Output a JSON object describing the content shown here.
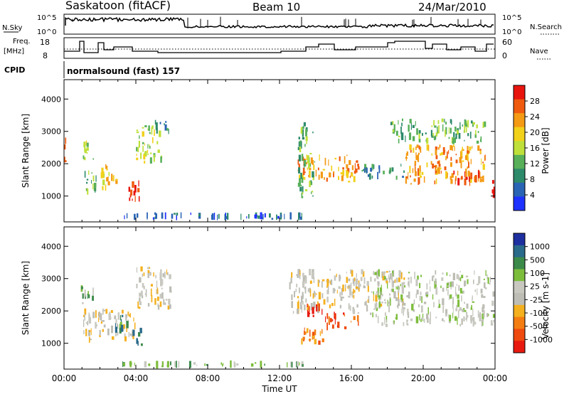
{
  "header": {
    "title": "Saskatoon (fitACF)",
    "beam": "Beam 10",
    "date": "24/Mar/2010"
  },
  "noise_panel": {
    "left_label": "N.Sky",
    "right_label": "N.Search",
    "left_ticks": [
      "10^5",
      "10^0"
    ],
    "right_ticks": [
      "10^5",
      "10^0"
    ]
  },
  "freq_panel": {
    "left_label_1": "Freq.",
    "left_label_2": "[MHz]",
    "right_label": "Nave",
    "left_ticks": [
      "18",
      "8"
    ],
    "right_ticks": [
      "60",
      "0"
    ]
  },
  "cpid": {
    "label": "CPID",
    "value": "normalsound (fast) 157"
  },
  "colors": {
    "power": [
      "#1e32ff",
      "#2a64b4",
      "#2d8a6a",
      "#58b05a",
      "#bfe03a",
      "#f2d11a",
      "#f49a14",
      "#ef5a0f",
      "#e8150e"
    ],
    "velocity": [
      "#e81a0f",
      "#ef4a10",
      "#f47d12",
      "#f4b01e",
      "#bdbdb5",
      "#c8c8c0",
      "#7dbd3c",
      "#3c8a4a",
      "#2a6a8a",
      "#1e2fa0"
    ]
  },
  "chart_data": [
    {
      "type": "heatmap",
      "name": "power",
      "xlabel": "",
      "ylabel": "Slant Range [km]",
      "ylim": [
        200,
        4600
      ],
      "xlim": [
        0,
        24
      ],
      "yticks": [
        "1000",
        "2000",
        "3000",
        "4000"
      ],
      "colorbar_label": "Power [dB]",
      "colorbar_ticks": [
        "4",
        "8",
        "12",
        "16",
        "20",
        "24",
        "28"
      ],
      "regions": [
        {
          "t0": 0.0,
          "t1": 0.15,
          "r0": 1500,
          "r1": 2900,
          "level": 7
        },
        {
          "t0": 1.0,
          "t1": 1.7,
          "r0": 2100,
          "r1": 2800,
          "level": 4
        },
        {
          "t0": 1.0,
          "t1": 1.9,
          "r0": 1000,
          "r1": 1800,
          "level": 3
        },
        {
          "t0": 2.0,
          "t1": 3.0,
          "r0": 1100,
          "r1": 2000,
          "level": 5
        },
        {
          "t0": 3.5,
          "t1": 4.3,
          "r0": 800,
          "r1": 1500,
          "level": 8
        },
        {
          "t0": 4.0,
          "t1": 5.5,
          "r0": 1900,
          "r1": 3300,
          "level": 4
        },
        {
          "t0": 5.0,
          "t1": 6.0,
          "r0": 2900,
          "r1": 3400,
          "level": 2
        },
        {
          "t0": 13.0,
          "t1": 16.5,
          "r0": 1400,
          "r1": 2300,
          "level": 6
        },
        {
          "t0": 13.0,
          "t1": 14.0,
          "r0": 900,
          "r1": 3300,
          "level": 3
        },
        {
          "t0": 16.5,
          "t1": 19.0,
          "r0": 1500,
          "r1": 2000,
          "level": 2
        },
        {
          "t0": 19.0,
          "t1": 23.5,
          "r0": 1300,
          "r1": 2600,
          "level": 6
        },
        {
          "t0": 21.5,
          "t1": 23.2,
          "r0": 1300,
          "r1": 1800,
          "level": 7
        },
        {
          "t0": 18.0,
          "t1": 23.5,
          "r0": 2600,
          "r1": 3400,
          "level": 3
        },
        {
          "t0": 23.8,
          "t1": 24.0,
          "r0": 900,
          "r1": 1500,
          "level": 8
        },
        {
          "t0": 3.0,
          "t1": 13.5,
          "r0": 250,
          "r1": 500,
          "level": 1
        }
      ]
    },
    {
      "type": "heatmap",
      "name": "velocity",
      "xlabel": "Time UT",
      "ylabel": "Slant Range [km]",
      "ylim": [
        200,
        4600
      ],
      "xlim": [
        0,
        24
      ],
      "yticks": [
        "1000",
        "2000",
        "3000",
        "4000"
      ],
      "xticks": [
        "00:00",
        "04:00",
        "08:00",
        "12:00",
        "16:00",
        "20:00",
        "00:00"
      ],
      "colorbar_label": "Velocity [m s-1]",
      "colorbar_ticks": [
        "1000",
        "500",
        "100",
        "25",
        "-25",
        "-100",
        "-500",
        "-1000"
      ],
      "regions": [
        {
          "t0": 0.9,
          "t1": 1.7,
          "r0": 2100,
          "r1": 2800,
          "level": 6
        },
        {
          "t0": 1.0,
          "t1": 4.0,
          "r0": 1000,
          "r1": 2100,
          "level": 4
        },
        {
          "t0": 2.8,
          "t1": 3.6,
          "r0": 1300,
          "r1": 1900,
          "level": 7
        },
        {
          "t0": 3.8,
          "t1": 4.4,
          "r0": 900,
          "r1": 1500,
          "level": 8
        },
        {
          "t0": 4.0,
          "t1": 6.0,
          "r0": 2000,
          "r1": 3400,
          "level": 4
        },
        {
          "t0": 13.0,
          "t1": 14.5,
          "r0": 900,
          "r1": 1500,
          "level": 2
        },
        {
          "t0": 14.5,
          "t1": 16.5,
          "r0": 1400,
          "r1": 2000,
          "level": 1
        },
        {
          "t0": 12.5,
          "t1": 19.0,
          "r0": 1900,
          "r1": 3300,
          "level": 4
        },
        {
          "t0": 13.5,
          "t1": 14.5,
          "r0": 1800,
          "r1": 2300,
          "level": 0
        },
        {
          "t0": 17.0,
          "t1": 24.0,
          "r0": 1500,
          "r1": 3300,
          "level": 5
        },
        {
          "t0": 3.0,
          "t1": 13.5,
          "r0": 250,
          "r1": 450,
          "level": 6
        }
      ]
    }
  ]
}
